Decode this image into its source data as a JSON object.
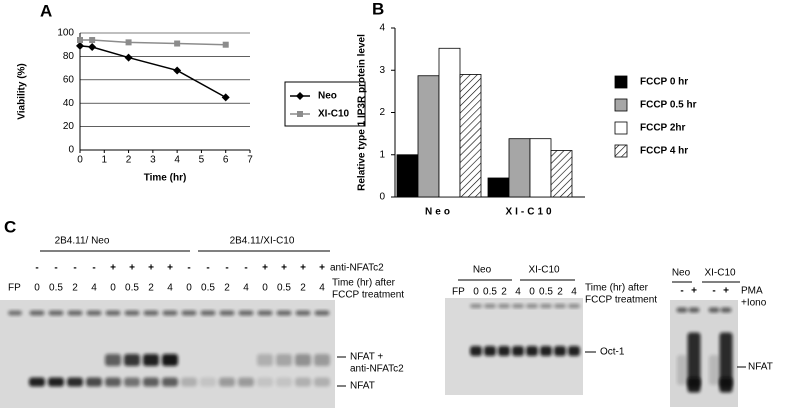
{
  "chart_data": [
    {
      "type": "line",
      "panel": "A",
      "x_label": "Time (hr)",
      "y_label": "Viability (%)",
      "xlim": [
        0,
        7
      ],
      "xticks": [
        0,
        1,
        2,
        3,
        4,
        5,
        6,
        7
      ],
      "ylim": [
        0,
        100
      ],
      "yticks": [
        0,
        20,
        40,
        60,
        80,
        100
      ],
      "grid": true,
      "series": [
        {
          "name": "Neo",
          "color": "#000000",
          "x": [
            0,
            0.5,
            2,
            4,
            6
          ],
          "values": [
            89,
            88,
            79,
            68,
            45
          ]
        },
        {
          "name": "XI-C10",
          "color": "#8c8c8c",
          "x": [
            0,
            0.5,
            2,
            4,
            6
          ],
          "values": [
            94,
            94,
            92,
            91,
            90
          ]
        }
      ]
    },
    {
      "type": "bar",
      "panel": "B",
      "y_label": "Relative type 1 IP3R protein level",
      "categories": [
        "Neo",
        "XI-C10"
      ],
      "ylim": [
        0,
        4
      ],
      "yticks": [
        0,
        1,
        2,
        3,
        4
      ],
      "series": [
        {
          "name": "FCCP 0 hr",
          "color": "#000000",
          "values": [
            1,
            0.45
          ]
        },
        {
          "name": "FCCP 0.5 hr",
          "color": "#a6a6a6",
          "values": [
            2.87,
            1.38
          ]
        },
        {
          "name": "FCCP 2hr",
          "color": "#ffffff",
          "values": [
            3.52,
            1.38
          ]
        },
        {
          "name": "FCCP 4 hr",
          "color": "#ffffff",
          "hatch": true,
          "values": [
            2.9,
            1.1
          ]
        }
      ]
    }
  ],
  "gels": {
    "panel": "C",
    "nfat": {
      "groups": [
        "2B4.11/ Neo",
        "2B4.11/XI-C10"
      ],
      "treatment_label": "anti-NFATc2",
      "treatment": [
        "-",
        "-",
        "-",
        "-",
        "+",
        "+",
        "+",
        "+",
        "-",
        "-",
        "-",
        "-",
        "+",
        "+",
        "+",
        "+"
      ],
      "probe_lane": "FP",
      "times": [
        "0",
        "0.5",
        "2",
        "4",
        "0",
        "0.5",
        "2",
        "4",
        "0",
        "0.5",
        "2",
        "4",
        "0",
        "0.5",
        "2",
        "4"
      ],
      "time_label": [
        "Time (hr) after",
        "FCCP treatment"
      ],
      "supershift_label": [
        "NFAT +",
        "anti-NFATc2"
      ],
      "band_label": "NFAT"
    },
    "oct": {
      "groups": [
        "Neo",
        "XI-C10"
      ],
      "probe_lane": "FP",
      "times": [
        "0",
        "0.5",
        "2",
        "4",
        "0",
        "0.5",
        "2",
        "4"
      ],
      "time_label": [
        "Time (hr) after",
        "FCCP treatment"
      ],
      "band_label": "Oct-1"
    },
    "pma": {
      "groups": [
        "Neo",
        "XI-C10"
      ],
      "treatment": [
        "-",
        "+",
        "-",
        "+"
      ],
      "treatment_label": [
        "PMA",
        "+Iono"
      ],
      "band_label": "NFAT"
    }
  }
}
